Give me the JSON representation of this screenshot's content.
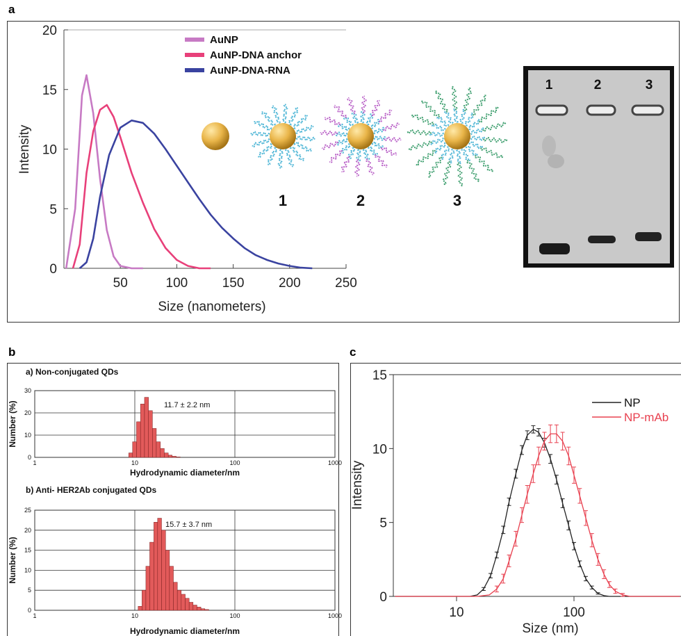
{
  "panels": {
    "a": "a",
    "b": "b",
    "c": "c"
  },
  "chart_data": [
    {
      "type": "line",
      "panel": "a",
      "xlabel": "Size (nanometers)",
      "ylabel": "Intensity",
      "xlim": [
        0,
        250
      ],
      "ylim": [
        0,
        20
      ],
      "x_ticks": [
        "50",
        "100",
        "150",
        "200",
        "250"
      ],
      "y_ticks": [
        "0",
        "5",
        "10",
        "15",
        "20"
      ],
      "legend_position": "top-center",
      "series": [
        {
          "name": "AuNP",
          "color": "#c77ac4",
          "x": [
            2,
            10,
            16,
            20,
            26,
            32,
            38,
            44,
            50,
            60,
            70
          ],
          "y": [
            0,
            5,
            14.5,
            16.2,
            13,
            7.5,
            3.2,
            1,
            0.2,
            0,
            0
          ]
        },
        {
          "name": "AuNP-DNA anchor",
          "color": "#e8407a",
          "x": [
            8,
            14,
            20,
            26,
            32,
            38,
            44,
            50,
            60,
            70,
            80,
            90,
            100,
            110,
            120,
            130
          ],
          "y": [
            0,
            2,
            8,
            11.5,
            13.3,
            13.7,
            12.7,
            11,
            8,
            5.5,
            3.3,
            1.7,
            0.7,
            0.2,
            0,
            0
          ]
        },
        {
          "name": "AuNP-DNA-RNA",
          "color": "#3a43a0",
          "x": [
            14,
            20,
            26,
            32,
            40,
            50,
            60,
            70,
            80,
            90,
            100,
            110,
            120,
            130,
            140,
            150,
            160,
            170,
            180,
            190,
            200,
            210,
            220
          ],
          "y": [
            0,
            0.5,
            2.5,
            6,
            9.5,
            11.8,
            12.4,
            12.2,
            11.3,
            10,
            8.6,
            7.2,
            5.8,
            4.5,
            3.4,
            2.5,
            1.7,
            1.1,
            0.7,
            0.4,
            0.2,
            0.05,
            0
          ]
        }
      ],
      "inset_labels": [
        "1",
        "2",
        "3"
      ],
      "gel_lane_labels": [
        "1",
        "2",
        "3"
      ]
    },
    {
      "type": "bar",
      "panel": "b-top",
      "title": "a) Non-conjugated QDs",
      "xlabel": "Hydrodynamic diameter/nm",
      "ylabel": "Number (%)",
      "x_scale": "log",
      "xlim": [
        1,
        1000
      ],
      "ylim": [
        0,
        30
      ],
      "x_ticks": [
        "1",
        "10",
        "100",
        "1000"
      ],
      "y_ticks": [
        "0",
        "10",
        "20",
        "30"
      ],
      "annotation": "11.7 ± 2.2 nm",
      "bar_color": "#e25a5a",
      "bins": [
        8.7,
        9.5,
        10.4,
        11.4,
        12.5,
        13.7,
        15.0,
        16.4,
        18.0,
        19.7,
        21.6,
        23.6,
        25.9
      ],
      "values": [
        2,
        7,
        16,
        24,
        27,
        21,
        13,
        7,
        4,
        2,
        1,
        0.5,
        0.2
      ]
    },
    {
      "type": "bar",
      "panel": "b-bottom",
      "title": "b) Anti- HER2Ab conjugated QDs",
      "xlabel": "Hydrodynamic diameter/nm",
      "ylabel": "Number (%)",
      "x_scale": "log",
      "xlim": [
        1,
        1000
      ],
      "ylim": [
        0,
        25
      ],
      "x_ticks": [
        "1",
        "10",
        "100",
        "1000"
      ],
      "y_ticks": [
        "0",
        "5",
        "10",
        "15",
        "20",
        "25"
      ],
      "annotation": "15.7 ± 3.7 nm",
      "bar_color": "#e25a5a",
      "bins": [
        10.8,
        11.8,
        12.9,
        14.1,
        15.5,
        16.9,
        18.5,
        20.3,
        22.2,
        24.3,
        26.6,
        29.1,
        31.9,
        34.9,
        38.2,
        41.8,
        45.8,
        50.1
      ],
      "values": [
        1,
        5,
        11,
        17,
        22,
        23,
        20,
        15,
        11,
        7,
        5,
        4,
        3,
        2,
        1.3,
        0.8,
        0.4,
        0.2
      ]
    },
    {
      "type": "line",
      "panel": "c",
      "xlabel": "Size (nm)",
      "ylabel": "Intensity",
      "x_scale": "log",
      "xlim": [
        3,
        1000
      ],
      "ylim": [
        0,
        15
      ],
      "x_ticks": [
        "10",
        "100"
      ],
      "y_ticks": [
        "0",
        "5",
        "10",
        "15"
      ],
      "legend_position": "top-right",
      "series": [
        {
          "name": "NP",
          "color": "#222222",
          "error_bars": true,
          "x": [
            3,
            5,
            8,
            11,
            13,
            15,
            17,
            19.5,
            22,
            25,
            28,
            32,
            36,
            40,
            45,
            50,
            56,
            63,
            71,
            80,
            90,
            100,
            112,
            126,
            142,
            160,
            180,
            200,
            225,
            260,
            300,
            400,
            600,
            800,
            1000
          ],
          "y": [
            0,
            0,
            0,
            0,
            0,
            0.1,
            0.5,
            1.4,
            2.8,
            4.5,
            6.4,
            8.3,
            9.9,
            10.9,
            11.3,
            11.1,
            10.4,
            9.3,
            7.9,
            6.3,
            4.8,
            3.4,
            2.2,
            1.2,
            0.6,
            0.2,
            0.05,
            0,
            0,
            0,
            0,
            0,
            0,
            0,
            0
          ],
          "err": [
            0,
            0,
            0,
            0,
            0,
            0,
            0.1,
            0.15,
            0.2,
            0.25,
            0.25,
            0.3,
            0.3,
            0.3,
            0.25,
            0.25,
            0.3,
            0.3,
            0.3,
            0.3,
            0.3,
            0.25,
            0.2,
            0.15,
            0.1,
            0.05,
            0,
            0,
            0,
            0,
            0,
            0,
            0,
            0,
            0
          ]
        },
        {
          "name": "NP-mAb",
          "color": "#e8404f",
          "error_bars": true,
          "x": [
            3,
            5,
            8,
            11,
            15,
            19,
            22,
            25,
            28,
            32,
            36,
            40,
            45,
            50,
            56,
            63,
            71,
            80,
            90,
            100,
            112,
            126,
            142,
            160,
            180,
            200,
            225,
            260,
            300,
            400,
            600,
            800,
            1000
          ],
          "y": [
            0,
            0,
            0,
            0,
            0,
            0.1,
            0.5,
            1.2,
            2.4,
            3.9,
            5.5,
            6.9,
            8.3,
            9.5,
            10.5,
            11.0,
            11.0,
            10.5,
            9.5,
            8.2,
            6.8,
            5.3,
            3.8,
            2.5,
            1.5,
            0.8,
            0.35,
            0.1,
            0,
            0,
            0,
            0,
            0.1
          ],
          "err": [
            0,
            0,
            0,
            0,
            0,
            0,
            0.2,
            0.3,
            0.4,
            0.5,
            0.5,
            0.6,
            0.6,
            0.6,
            0.6,
            0.6,
            0.6,
            0.6,
            0.6,
            0.55,
            0.5,
            0.5,
            0.45,
            0.4,
            0.3,
            0.2,
            0.15,
            0.1,
            0,
            0,
            0,
            0,
            0.1
          ]
        }
      ]
    }
  ]
}
